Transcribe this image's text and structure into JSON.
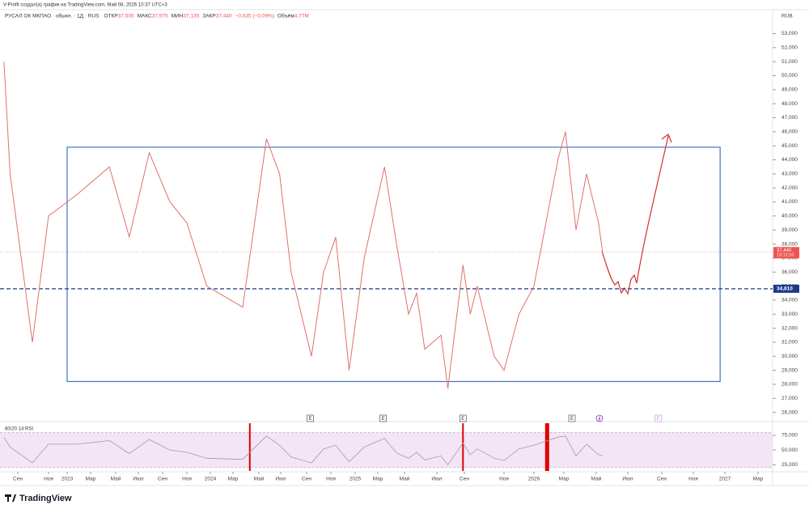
{
  "header": {
    "credit": "V-Profit создал(а) график на TradingView.com, Май 08, 2026 10:37 UTC+3",
    "symbol": "РУСАЛ ОК МКПАО · обыкн. · 1Д · RUS",
    "ohlc": [
      {
        "label": "ОТКР",
        "value": "37,505"
      },
      {
        "label": "МАКС",
        "value": "37,975"
      },
      {
        "label": "МИН",
        "value": "37,135"
      },
      {
        "label": "ЗАКР",
        "value": "37,440"
      },
      {
        "label": "",
        "value": "−0,035 (−0,09%)"
      },
      {
        "label": "Объём",
        "value": "4,77M"
      }
    ],
    "currency": "RUB"
  },
  "chart_data": [
    {
      "type": "line",
      "color": "#e0706a",
      "x": [
        -0.9,
        -0.5,
        0.95,
        2,
        4.8,
        7.5,
        9.2,
        10.9,
        12.6,
        14,
        15.7,
        18.75,
        20.7,
        21.9,
        22.8,
        24.4,
        25.4,
        26.4,
        27.5,
        28.8,
        30.5,
        31.4,
        32.25,
        32.75,
        33.25,
        34.3,
        34.8,
        35.9,
        36.3,
        36.65,
        37.5,
        38,
        39,
        40,
        41.6,
        42.1,
        42.75,
        43.4,
        44.15,
        44.4
      ],
      "values": [
        51000,
        43000,
        31000,
        40000,
        41500,
        43500,
        38500,
        44500,
        41000,
        39500,
        35000,
        33500,
        45500,
        43000,
        36000,
        30000,
        36000,
        38500,
        29000,
        37000,
        43500,
        38000,
        33000,
        34500,
        30500,
        31500,
        27700,
        36500,
        33000,
        35000,
        30000,
        29000,
        33000,
        35000,
        44000,
        46000,
        39000,
        43000,
        39500,
        37440
      ],
      "last_label": "37,440",
      "countdown": "13:12:10",
      "level": {
        "value": 34810,
        "label": "34,810"
      },
      "box": {
        "x": [
          4,
          51.7
        ],
        "y": [
          28200,
          44900
        ]
      },
      "events": [
        {
          "x": 24.3,
          "label": "E"
        },
        {
          "x": 30.4,
          "label": "E"
        },
        {
          "x": 35.9,
          "label": "E"
        },
        {
          "x": 42.5,
          "label": "E"
        },
        {
          "x": 47.8,
          "label": "E"
        }
      ],
      "xlim": [
        -1.2,
        55
      ],
      "xticks": [
        {
          "value": 0,
          "label": "Сен"
        },
        {
          "value": 2,
          "label": "Ноя"
        },
        {
          "value": 4,
          "label": "2023"
        },
        {
          "value": 6,
          "label": "Мар"
        },
        {
          "value": 8,
          "label": "Май"
        },
        {
          "value": 10,
          "label": "Июл"
        },
        {
          "value": 12,
          "label": "Сен"
        },
        {
          "value": 14,
          "label": "Ноя"
        },
        {
          "value": 16,
          "label": "2024"
        },
        {
          "value": 18,
          "label": "Мар"
        },
        {
          "value": 20,
          "label": "Май"
        },
        {
          "value": 22,
          "label": "Июл"
        },
        {
          "value": 24,
          "label": "Сен"
        },
        {
          "value": 26,
          "label": "Ноя"
        },
        {
          "value": 28,
          "label": "2025"
        },
        {
          "value": 30,
          "label": "Мар"
        },
        {
          "value": 32,
          "label": "Май"
        },
        {
          "value": 34,
          "label": "Июл"
        },
        {
          "value": 36,
          "label": "Сен"
        },
        {
          "value": 38,
          "label": "Ноя"
        },
        {
          "value": 40,
          "label": "2026"
        },
        {
          "value": 42,
          "label": "Мар"
        },
        {
          "value": 44,
          "label": "Май"
        },
        {
          "value": 46,
          "label": "Июл"
        },
        {
          "value": 48,
          "label": "Сен"
        },
        {
          "value": 50,
          "label": "Ноя"
        },
        {
          "value": 52,
          "label": "2027"
        },
        {
          "value": 54,
          "label": "Мар"
        }
      ],
      "ylim": [
        25400,
        54700
      ],
      "yticks": [
        {
          "value": 26000,
          "label": "26,000"
        },
        {
          "value": 27000,
          "label": "27,000"
        },
        {
          "value": 28000,
          "label": "28,000"
        },
        {
          "value": 29000,
          "label": "29,000"
        },
        {
          "value": 30000,
          "label": "30,000"
        },
        {
          "value": 31000,
          "label": "31,000"
        },
        {
          "value": 32000,
          "label": "32,000"
        },
        {
          "value": 33000,
          "label": "33,000"
        },
        {
          "value": 34000,
          "label": "34,000"
        },
        {
          "value": 35000,
          "label": "35,000"
        },
        {
          "value": 36000,
          "label": "36,000"
        },
        {
          "value": 37000,
          "label": "37,000"
        },
        {
          "value": 38000,
          "label": "38,000"
        },
        {
          "value": 39000,
          "label": "39,000"
        },
        {
          "value": 40000,
          "label": "40,000"
        },
        {
          "value": 41000,
          "label": "41,000"
        },
        {
          "value": 42000,
          "label": "42,000"
        },
        {
          "value": 43000,
          "label": "43,000"
        },
        {
          "value": 44000,
          "label": "44,000"
        },
        {
          "value": 45000,
          "label": "45,000"
        },
        {
          "value": 46000,
          "label": "46,000"
        },
        {
          "value": 47000,
          "label": "47,000"
        },
        {
          "value": 48000,
          "label": "48,000"
        },
        {
          "value": 49000,
          "label": "49,000"
        },
        {
          "value": 50000,
          "label": "50,000"
        },
        {
          "value": 51000,
          "label": "51,000"
        },
        {
          "value": 52000,
          "label": "52,000"
        },
        {
          "value": 53000,
          "label": "53,000"
        }
      ]
    },
    {
      "type": "line",
      "title": "80/20 14 RSI",
      "color": "#9e9e9e",
      "x": [
        -0.9,
        -0.5,
        0.95,
        2,
        4.8,
        7.5,
        9.2,
        10.9,
        12.6,
        14,
        15.7,
        18.75,
        20.7,
        21.9,
        22.8,
        24.4,
        25.4,
        26.4,
        27.5,
        28.8,
        30.5,
        31.4,
        32.25,
        32.75,
        33.25,
        34.3,
        34.8,
        35.9,
        36.3,
        36.65,
        37.5,
        38,
        39,
        40,
        41.6,
        42.1,
        42.75,
        43.4,
        44.15,
        44.4
      ],
      "values": [
        72,
        55,
        28,
        60,
        60,
        66,
        44,
        68,
        50,
        46,
        36,
        34,
        74,
        58,
        38,
        28,
        52,
        58,
        30,
        55,
        70,
        45,
        36,
        46,
        33,
        40,
        25,
        62,
        42,
        52,
        36,
        32,
        52,
        58,
        72,
        74,
        40,
        60,
        42,
        40
      ],
      "band": [
        20,
        80
      ],
      "alerts_x": [
        19.3,
        35.9,
        40.8
      ],
      "ylim": [
        17,
        93
      ],
      "yticks": [
        {
          "value": 25,
          "label": "25,000"
        },
        {
          "value": 50,
          "label": "50,000"
        },
        {
          "value": 75,
          "label": "75,000"
        }
      ]
    }
  ],
  "footer": {
    "brand": "TradingView"
  }
}
